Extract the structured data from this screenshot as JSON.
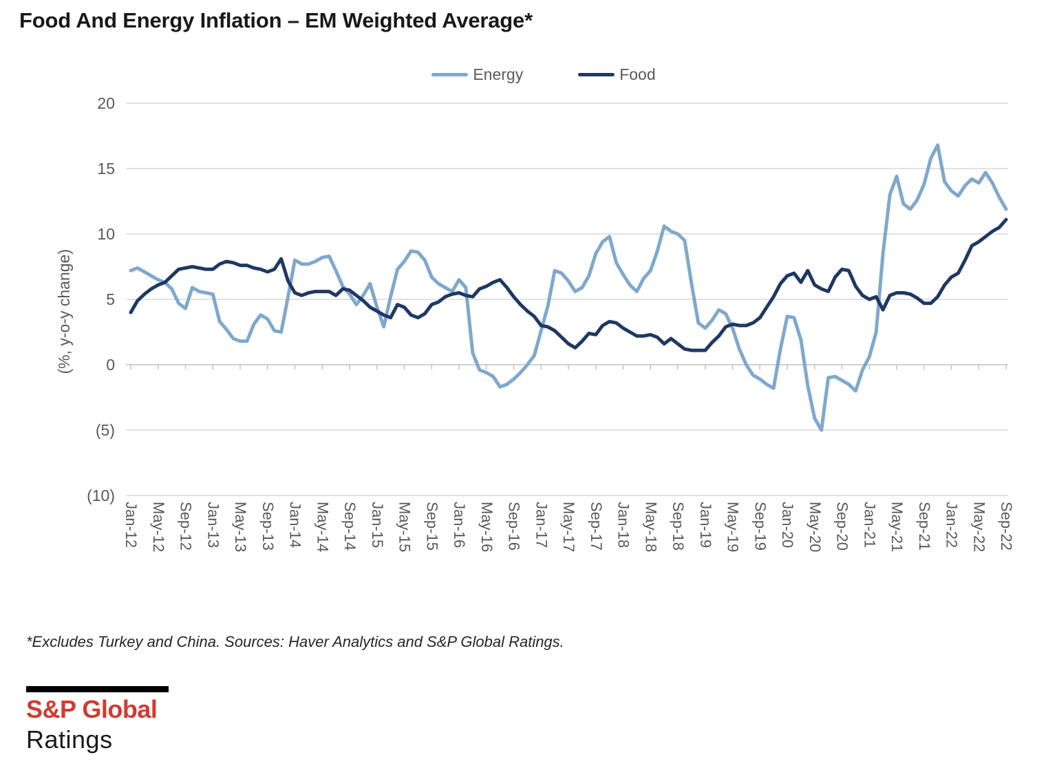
{
  "title": "Food And Energy Inflation – EM Weighted Average*",
  "footnote": "*Excludes Turkey and China. Sources: Haver Analytics and S&P Global Ratings.",
  "logo": {
    "line1": "S&P Global",
    "line2": "Ratings",
    "accent_color": "#d6392f"
  },
  "chart_data": {
    "type": "line",
    "title": "Food And Energy Inflation – EM Weighted Average*",
    "ylabel": "(%, y-o-y change)",
    "xlabel": "",
    "ylim": [
      -10,
      20
    ],
    "grid": true,
    "legend_position": "top",
    "frequency": "monthly",
    "x_range": [
      "Jan-12",
      "Sep-22"
    ],
    "grid_color": "#d9d9d9",
    "axis_color": "#bfbfbf",
    "tick_label_color": "#595959",
    "y_tick_values": [
      20,
      15,
      10,
      5,
      0,
      -5,
      -10
    ],
    "y_tick_labels": [
      "20",
      "15",
      "10",
      "5",
      "0",
      "(5)",
      "(10)"
    ],
    "x_tick_labels": [
      "Jan-12",
      "May-12",
      "Sep-12",
      "Jan-13",
      "May-13",
      "Sep-13",
      "Jan-14",
      "May-14",
      "Sep-14",
      "Jan-15",
      "May-15",
      "Sep-15",
      "Jan-16",
      "May-16",
      "Sep-16",
      "Jan-17",
      "May-17",
      "Sep-17",
      "Jan-18",
      "May-18",
      "Sep-18",
      "Jan-19",
      "May-19",
      "Sep-19",
      "Jan-20",
      "May-20",
      "Sep-20",
      "Jan-21",
      "May-21",
      "Sep-21",
      "Jan-22",
      "May-22",
      "Sep-22"
    ],
    "series": [
      {
        "name": "Energy",
        "color": "#7fa8cc",
        "values": [
          7.2,
          7.4,
          7.1,
          6.8,
          6.5,
          6.3,
          5.8,
          4.7,
          4.3,
          5.9,
          5.6,
          5.5,
          5.4,
          3.3,
          2.7,
          2.0,
          1.8,
          1.8,
          3.1,
          3.8,
          3.5,
          2.6,
          2.5,
          5.2,
          8.0,
          7.7,
          7.7,
          7.9,
          8.2,
          8.3,
          7.2,
          6.0,
          5.4,
          4.6,
          5.3,
          6.2,
          4.4,
          2.9,
          5.2,
          7.3,
          7.9,
          8.7,
          8.6,
          8.0,
          6.7,
          6.2,
          5.9,
          5.6,
          6.5,
          5.9,
          0.9,
          -0.4,
          -0.6,
          -0.9,
          -1.7,
          -1.5,
          -1.1,
          -0.6,
          0.0,
          0.7,
          2.6,
          4.5,
          7.2,
          7.0,
          6.4,
          5.6,
          5.9,
          6.8,
          8.5,
          9.4,
          9.8,
          7.8,
          6.9,
          6.1,
          5.6,
          6.6,
          7.2,
          8.7,
          10.6,
          10.2,
          10.0,
          9.5,
          6.2,
          3.2,
          2.8,
          3.4,
          4.2,
          3.9,
          2.8,
          1.2,
          0.0,
          -0.8,
          -1.1,
          -1.5,
          -1.8,
          1.2,
          3.7,
          3.6,
          1.9,
          -1.6,
          -4.1,
          -5.0,
          -1.0,
          -0.9,
          -1.2,
          -1.5,
          -2.0,
          -0.4,
          0.6,
          2.5,
          8.5,
          13.0,
          14.4,
          12.3,
          11.9,
          12.6,
          13.8,
          15.8,
          16.8,
          14.0,
          13.3,
          12.9,
          13.7,
          14.2,
          13.9,
          14.7,
          13.9,
          12.8,
          11.9
        ]
      },
      {
        "name": "Food",
        "color": "#1f3864",
        "values": [
          4.0,
          4.9,
          5.4,
          5.8,
          6.1,
          6.3,
          6.8,
          7.3,
          7.4,
          7.5,
          7.4,
          7.3,
          7.3,
          7.7,
          7.9,
          7.8,
          7.6,
          7.6,
          7.4,
          7.3,
          7.1,
          7.3,
          8.1,
          6.4,
          5.5,
          5.3,
          5.5,
          5.6,
          5.6,
          5.6,
          5.3,
          5.8,
          5.7,
          5.3,
          4.9,
          4.4,
          4.1,
          3.8,
          3.6,
          4.6,
          4.4,
          3.8,
          3.6,
          3.9,
          4.6,
          4.8,
          5.2,
          5.4,
          5.5,
          5.3,
          5.2,
          5.8,
          6.0,
          6.3,
          6.5,
          5.9,
          5.2,
          4.6,
          4.1,
          3.7,
          3.0,
          2.9,
          2.6,
          2.1,
          1.6,
          1.3,
          1.8,
          2.4,
          2.3,
          3.0,
          3.3,
          3.2,
          2.8,
          2.5,
          2.2,
          2.2,
          2.3,
          2.1,
          1.6,
          2.0,
          1.6,
          1.2,
          1.1,
          1.1,
          1.1,
          1.7,
          2.2,
          2.9,
          3.1,
          3.0,
          3.0,
          3.2,
          3.6,
          4.4,
          5.2,
          6.2,
          6.8,
          7.0,
          6.3,
          7.2,
          6.1,
          5.8,
          5.6,
          6.7,
          7.3,
          7.2,
          6.0,
          5.3,
          5.0,
          5.2,
          4.2,
          5.3,
          5.5,
          5.5,
          5.4,
          5.1,
          4.7,
          4.7,
          5.2,
          6.1,
          6.7,
          7.0,
          8.0,
          9.1,
          9.4,
          9.8,
          10.2,
          10.5,
          11.1
        ]
      }
    ]
  }
}
